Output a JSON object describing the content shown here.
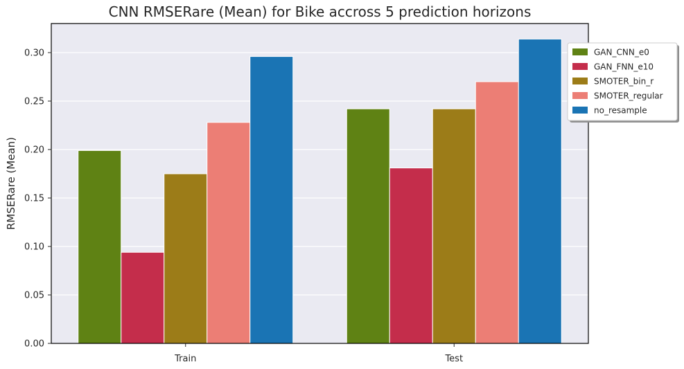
{
  "chart_data": {
    "type": "bar",
    "title": "CNN RMSERare (Mean) for Bike accross 5 prediction horizons",
    "xlabel": "",
    "ylabel": "RMSERare (Mean)",
    "categories": [
      "Train",
      "Test"
    ],
    "ylim": [
      0,
      0.33
    ],
    "yticks": [
      "0.00",
      "0.05",
      "0.10",
      "0.15",
      "0.20",
      "0.25",
      "0.30"
    ],
    "grid": true,
    "legend_position": "top-right, outside",
    "series": [
      {
        "name": "GAN_CNN_e0",
        "color": "#5f8214",
        "values": [
          0.199,
          0.242
        ]
      },
      {
        "name": "GAN_FNN_e10",
        "color": "#c42d4b",
        "values": [
          0.094,
          0.181
        ]
      },
      {
        "name": "SMOTER_bin_r",
        "color": "#9c7c18",
        "values": [
          0.175,
          0.242
        ]
      },
      {
        "name": "SMOTER_regular",
        "color": "#ec7e75",
        "values": [
          0.228,
          0.27
        ]
      },
      {
        "name": "no_resample",
        "color": "#1a74b4",
        "values": [
          0.296,
          0.314
        ]
      }
    ]
  }
}
